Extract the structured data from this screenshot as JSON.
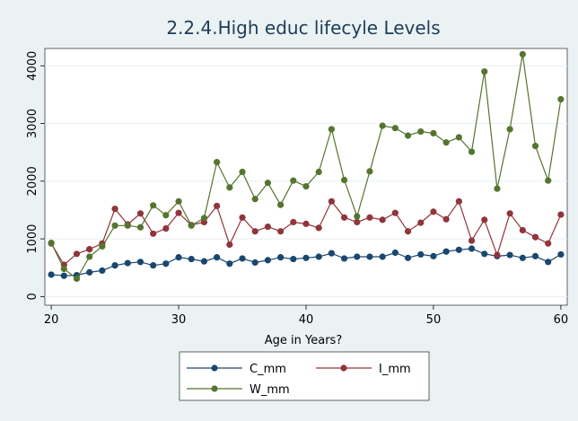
{
  "chart_data": {
    "type": "line",
    "title": "2.2.4.High educ lifecyle Levels",
    "xlabel": "Age in Years?",
    "ylabel": "",
    "xlim": [
      19.5,
      60.5
    ],
    "ylim": [
      -150,
      4300
    ],
    "x_ticks": [
      20,
      30,
      40,
      50,
      60
    ],
    "y_ticks": [
      0,
      1000,
      2000,
      3000,
      4000
    ],
    "grid": "horizontal",
    "legend_position": "bottom",
    "x": [
      20,
      21,
      22,
      23,
      24,
      25,
      26,
      27,
      28,
      29,
      30,
      31,
      32,
      33,
      34,
      35,
      36,
      37,
      38,
      39,
      40,
      41,
      42,
      43,
      44,
      45,
      46,
      47,
      48,
      49,
      50,
      51,
      52,
      53,
      54,
      55,
      56,
      57,
      58,
      59,
      60
    ],
    "series": [
      {
        "name": "C_mm",
        "color": "#1a476f",
        "values": [
          380,
          360,
          370,
          420,
          450,
          540,
          580,
          600,
          540,
          570,
          680,
          650,
          610,
          680,
          570,
          660,
          590,
          630,
          680,
          650,
          670,
          690,
          750,
          660,
          690,
          690,
          690,
          760,
          670,
          730,
          700,
          780,
          810,
          830,
          740,
          700,
          720,
          670,
          700,
          600,
          730
        ]
      },
      {
        "name": "I_mm",
        "color": "#90353b",
        "values": [
          920,
          550,
          740,
          820,
          920,
          1520,
          1250,
          1440,
          1090,
          1180,
          1450,
          1240,
          1290,
          1570,
          900,
          1370,
          1130,
          1210,
          1130,
          1290,
          1260,
          1190,
          1650,
          1370,
          1290,
          1370,
          1330,
          1450,
          1130,
          1280,
          1470,
          1340,
          1650,
          970,
          1330,
          720,
          1440,
          1150,
          1030,
          920,
          1420
        ]
      },
      {
        "name": "W_mm",
        "color": "#55752f",
        "values": [
          930,
          480,
          310,
          690,
          870,
          1230,
          1230,
          1200,
          1580,
          1410,
          1650,
          1230,
          1360,
          2330,
          1890,
          2160,
          1690,
          1970,
          1590,
          2010,
          1910,
          2160,
          2900,
          2020,
          1390,
          2170,
          2960,
          2920,
          2790,
          2860,
          2830,
          2670,
          2760,
          2510,
          3900,
          1870,
          2900,
          4200,
          2610,
          2010,
          3420
        ]
      }
    ]
  }
}
